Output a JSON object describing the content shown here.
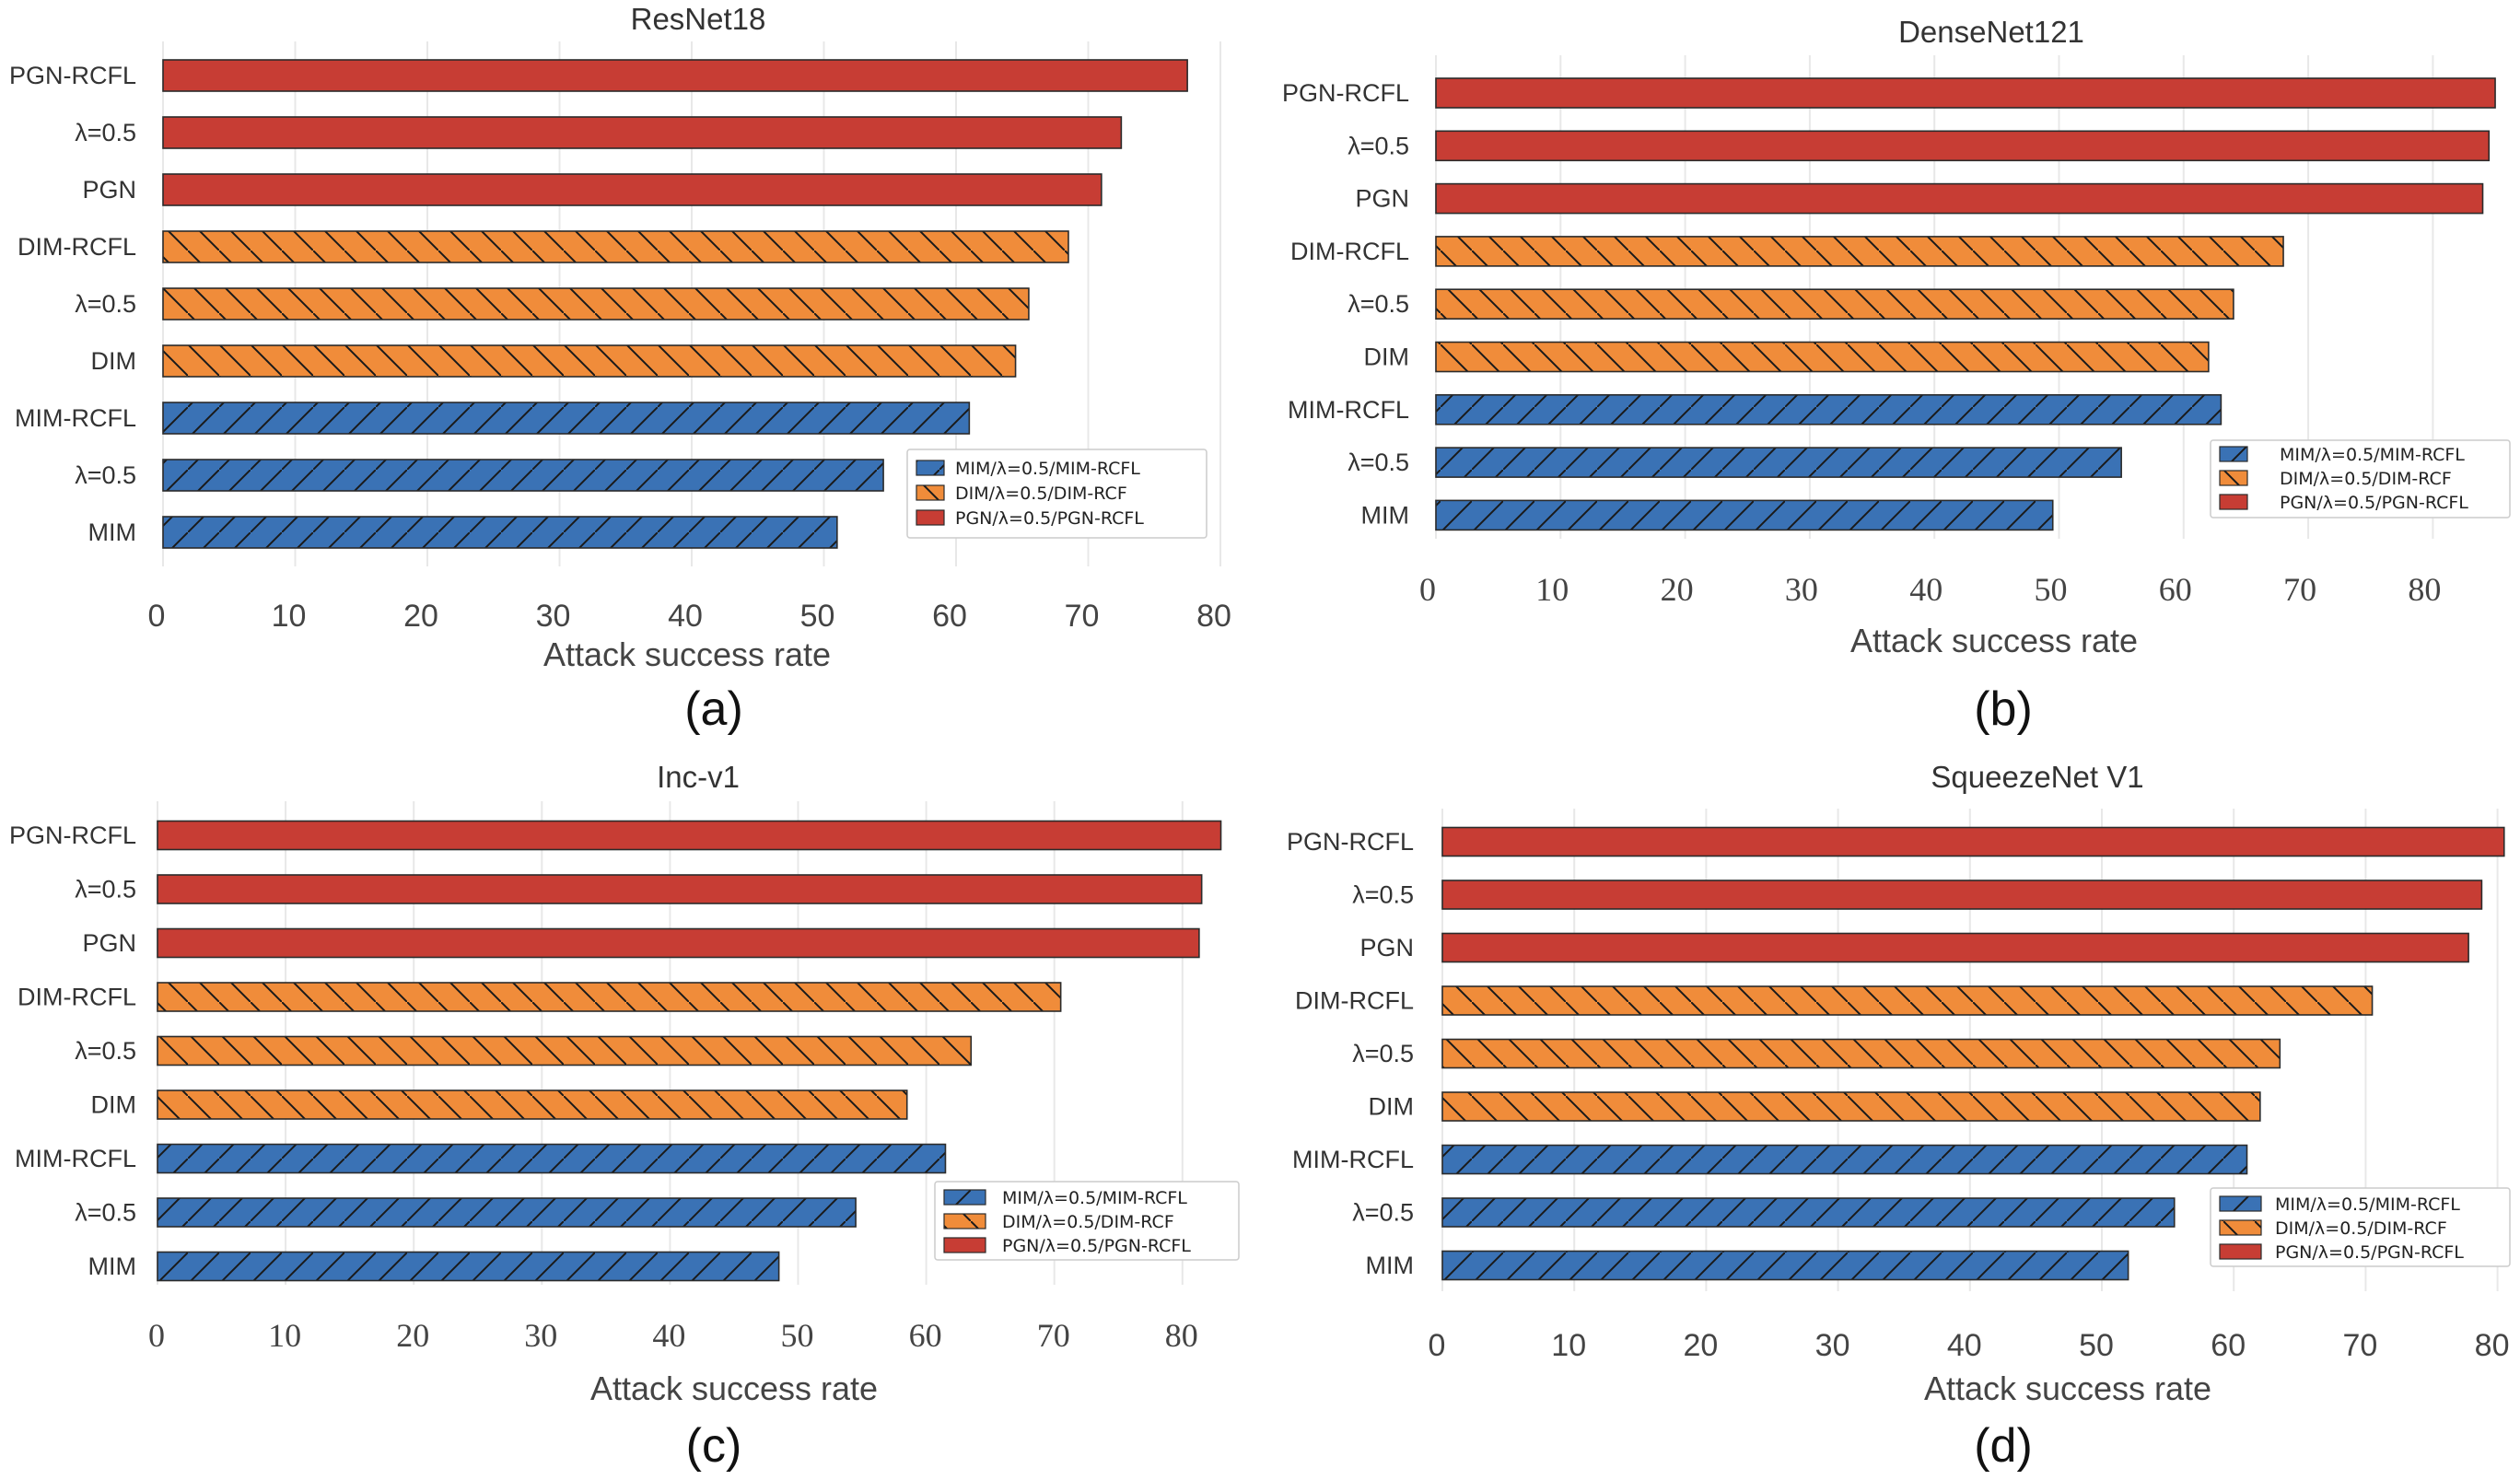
{
  "chart_data": [
    {
      "type": "bar",
      "orientation": "horizontal",
      "panel": "(a)",
      "title": "ResNet18",
      "xlabel": "Attack success rate",
      "ylabel": "",
      "xlim": [
        0,
        80
      ],
      "xticks": [
        "0",
        "10",
        "20",
        "30",
        "40",
        "50",
        "60",
        "70",
        "80"
      ],
      "categories": [
        "PGN-RCFL",
        "λ=0.5",
        "PGN",
        "DIM-RCFL",
        "λ=0.5",
        "DIM",
        "MIM-RCFL",
        "λ=0.5",
        "MIM"
      ],
      "groups": [
        "PGN",
        "PGN",
        "PGN",
        "DIM",
        "DIM",
        "DIM",
        "MIM",
        "MIM",
        "MIM"
      ],
      "values": [
        77.5,
        72.5,
        71,
        68.5,
        65.5,
        64.5,
        61,
        54.5,
        51
      ],
      "tick_font": "sans",
      "legend": [
        "MIM/λ=0.5/MIM-RCFL",
        "DIM/λ=0.5/DIM-RCF",
        "PGN/λ=0.5/PGN-RCFL"
      ],
      "legend_position": "lower-right",
      "grid": true
    },
    {
      "type": "bar",
      "orientation": "horizontal",
      "panel": "(b)",
      "title": "DenseNet121",
      "xlabel": "Attack success rate",
      "ylabel": "",
      "xlim": [
        0,
        85
      ],
      "xticks": [
        "0",
        "10",
        "20",
        "30",
        "40",
        "50",
        "60",
        "70",
        "80"
      ],
      "categories": [
        "PGN-RCFL",
        "λ=0.5",
        "PGN",
        "DIM-RCFL",
        "λ=0.5",
        "DIM",
        "MIM-RCFL",
        "λ=0.5",
        "MIM"
      ],
      "groups": [
        "PGN",
        "PGN",
        "PGN",
        "DIM",
        "DIM",
        "DIM",
        "MIM",
        "MIM",
        "MIM"
      ],
      "values": [
        85,
        84.5,
        84,
        68,
        64,
        62,
        63,
        55,
        49.5
      ],
      "tick_font": "serif",
      "legend": [
        "MIM/λ=0.5/MIM-RCFL",
        "DIM/λ=0.5/DIM-RCF",
        "PGN/λ=0.5/PGN-RCFL"
      ],
      "legend_position": "lower-right",
      "grid": true
    },
    {
      "type": "bar",
      "orientation": "horizontal",
      "panel": "(c)",
      "title": "Inc-v1",
      "xlabel": "Attack success rate",
      "ylabel": "",
      "xlim": [
        0,
        83
      ],
      "xticks": [
        "0",
        "10",
        "20",
        "30",
        "40",
        "50",
        "60",
        "70",
        "80"
      ],
      "categories": [
        "PGN-RCFL",
        "λ=0.5",
        "PGN",
        "DIM-RCFL",
        "λ=0.5",
        "DIM",
        "MIM-RCFL",
        "λ=0.5",
        "MIM"
      ],
      "groups": [
        "PGN",
        "PGN",
        "PGN",
        "DIM",
        "DIM",
        "DIM",
        "MIM",
        "MIM",
        "MIM"
      ],
      "values": [
        83,
        81.5,
        81.3,
        70.5,
        63.5,
        58.5,
        61.5,
        54.5,
        48.5
      ],
      "tick_font": "serif",
      "legend": [
        "MIM/λ=0.5/MIM-RCFL",
        "DIM/λ=0.5/DIM-RCF",
        "PGN/λ=0.5/PGN-RCFL"
      ],
      "legend_position": "lower-right",
      "grid": true
    },
    {
      "type": "bar",
      "orientation": "horizontal",
      "panel": "(d)",
      "title": "SqueezeNet V1",
      "xlabel": "Attack success rate",
      "ylabel": "",
      "xlim": [
        0,
        80
      ],
      "xticks": [
        "0",
        "10",
        "20",
        "30",
        "40",
        "50",
        "60",
        "70",
        "80"
      ],
      "categories": [
        "PGN-RCFL",
        "λ=0.5",
        "PGN",
        "DIM-RCFL",
        "λ=0.5",
        "DIM",
        "MIM-RCFL",
        "λ=0.5",
        "MIM"
      ],
      "groups": [
        "PGN",
        "PGN",
        "PGN",
        "DIM",
        "DIM",
        "DIM",
        "MIM",
        "MIM",
        "MIM"
      ],
      "values": [
        80.5,
        78.8,
        77.8,
        70.5,
        63.5,
        62,
        61,
        55.5,
        52
      ],
      "tick_font": "sans",
      "legend": [
        "MIM/λ=0.5/MIM-RCFL",
        "DIM/λ=0.5/DIM-RCF",
        "PGN/λ=0.5/PGN-RCFL"
      ],
      "legend_position": "lower-right",
      "grid": true
    }
  ],
  "colors": {
    "MIM": "#3a72b5",
    "DIM": "#f08c3a",
    "PGN": "#c73d34",
    "edge": "#2b2b2b",
    "grid": "#e8e8e8"
  }
}
